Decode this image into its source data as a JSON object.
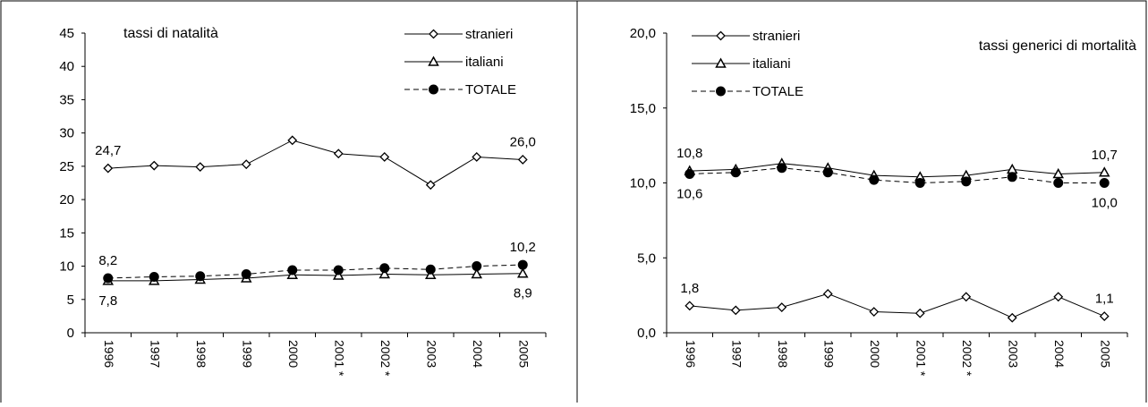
{
  "chart_data": [
    {
      "type": "line",
      "title": "tassi di natalità",
      "categories": [
        "1996",
        "1997",
        "1998",
        "1999",
        "2000",
        "2001 *",
        "2002 *",
        "2003",
        "2004",
        "2005"
      ],
      "ylim": [
        0,
        45
      ],
      "yticks": [
        "0",
        "5",
        "10",
        "15",
        "20",
        "25",
        "30",
        "35",
        "40",
        "45"
      ],
      "ytick_values": [
        0,
        5,
        10,
        15,
        20,
        25,
        30,
        35,
        40,
        45
      ],
      "grid": false,
      "legend_position": "top-right",
      "series": [
        {
          "name": "stranieri",
          "marker": "diamond",
          "dash": "solid",
          "values": [
            24.7,
            25.1,
            24.9,
            25.3,
            28.9,
            26.9,
            26.4,
            22.2,
            26.4,
            26.0
          ]
        },
        {
          "name": "italiani",
          "marker": "triangle",
          "dash": "solid",
          "values": [
            7.8,
            7.8,
            8.0,
            8.2,
            8.7,
            8.6,
            8.8,
            8.7,
            8.8,
            8.9
          ]
        },
        {
          "name": "TOTALE",
          "marker": "circle",
          "dash": "dashed",
          "values": [
            8.2,
            8.4,
            8.5,
            8.8,
            9.4,
            9.4,
            9.7,
            9.5,
            10.0,
            10.2
          ]
        }
      ],
      "data_labels": [
        {
          "series": 0,
          "index": 0,
          "text": "24,7",
          "pos": "above"
        },
        {
          "series": 0,
          "index": 9,
          "text": "26,0",
          "pos": "above"
        },
        {
          "series": 2,
          "index": 0,
          "text": "8,2",
          "pos": "above"
        },
        {
          "series": 2,
          "index": 9,
          "text": "10,2",
          "pos": "above"
        },
        {
          "series": 1,
          "index": 0,
          "text": "7,8",
          "pos": "below"
        },
        {
          "series": 1,
          "index": 9,
          "text": "8,9",
          "pos": "below"
        }
      ]
    },
    {
      "type": "line",
      "title": "tassi generici di mortalità",
      "categories": [
        "1996",
        "1997",
        "1998",
        "1999",
        "2000",
        "2001 *",
        "2002 *",
        "2003",
        "2004",
        "2005"
      ],
      "ylim": [
        0,
        20
      ],
      "yticks": [
        "0,0",
        "5,0",
        "10,0",
        "15,0",
        "20,0"
      ],
      "ytick_values": [
        0,
        5,
        10,
        15,
        20
      ],
      "grid": false,
      "legend_position": "top-left",
      "series": [
        {
          "name": "stranieri",
          "marker": "diamond",
          "dash": "solid",
          "values": [
            1.8,
            1.5,
            1.7,
            2.6,
            1.4,
            1.3,
            2.4,
            1.0,
            2.4,
            1.1
          ]
        },
        {
          "name": "italiani",
          "marker": "triangle",
          "dash": "solid",
          "values": [
            10.8,
            10.9,
            11.3,
            11.0,
            10.5,
            10.4,
            10.5,
            10.9,
            10.6,
            10.7
          ]
        },
        {
          "name": "TOTALE",
          "marker": "circle",
          "dash": "dashed",
          "values": [
            10.6,
            10.7,
            11.0,
            10.7,
            10.2,
            10.0,
            10.1,
            10.4,
            10.0,
            10.0
          ]
        }
      ],
      "data_labels": [
        {
          "series": 1,
          "index": 0,
          "text": "10,8",
          "pos": "above"
        },
        {
          "series": 1,
          "index": 9,
          "text": "10,7",
          "pos": "above"
        },
        {
          "series": 2,
          "index": 0,
          "text": "10,6",
          "pos": "below"
        },
        {
          "series": 2,
          "index": 9,
          "text": "10,0",
          "pos": "below"
        },
        {
          "series": 0,
          "index": 0,
          "text": "1,8",
          "pos": "above"
        },
        {
          "series": 0,
          "index": 9,
          "text": "1,1",
          "pos": "above"
        }
      ]
    }
  ]
}
